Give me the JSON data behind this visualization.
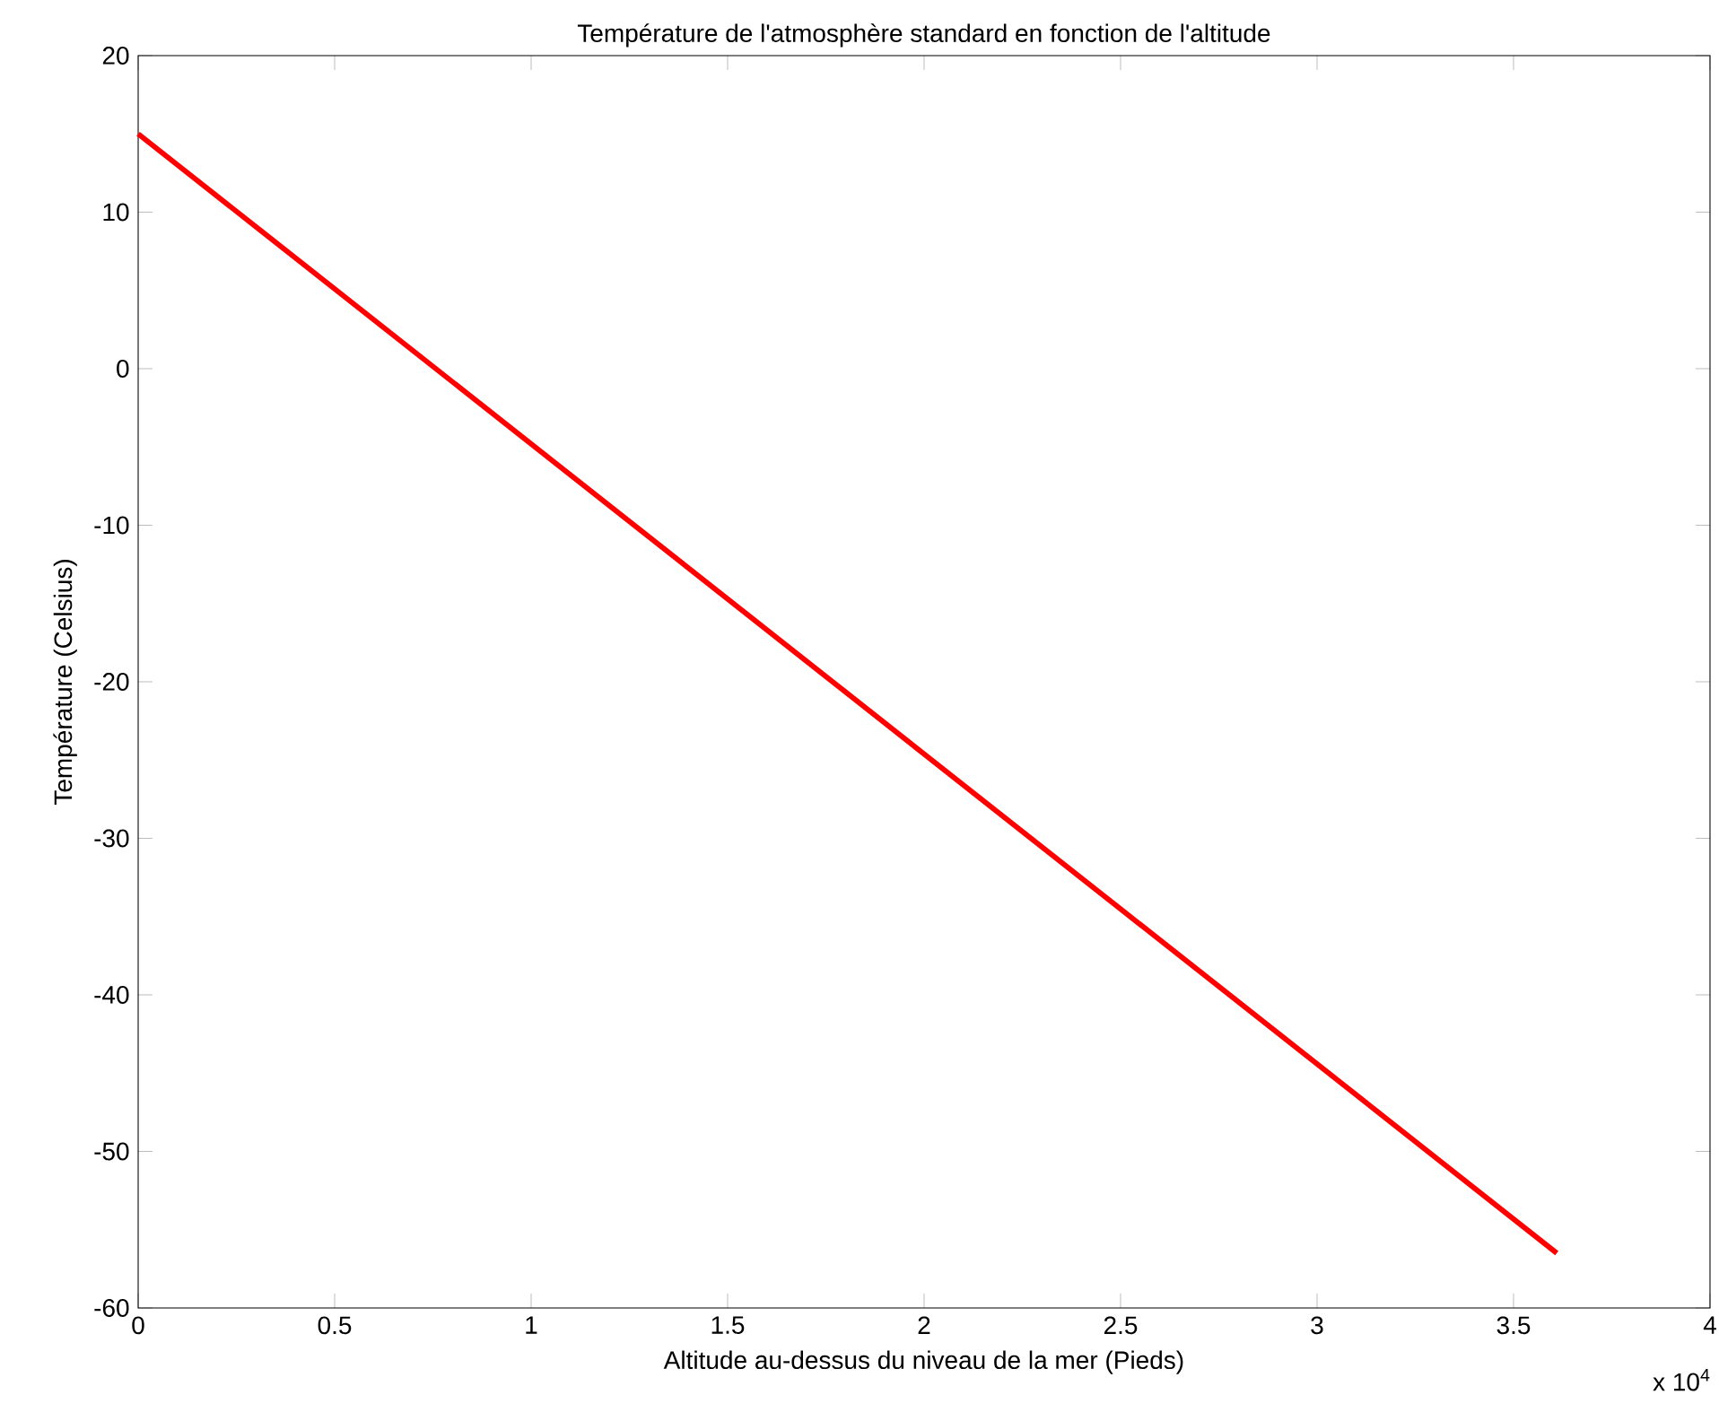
{
  "chart_data": {
    "type": "line",
    "title": "Température de l'atmosphère standard en fonction de l'altitude",
    "xlabel": "Altitude au-dessus du niveau de la mer (Pieds)",
    "ylabel": "Température (Celsius)",
    "series": [
      {
        "color": "#ff0000",
        "x": [
          0,
          3.61
        ],
        "values": [
          15,
          -56.5
        ]
      }
    ],
    "xlim": [
      0,
      4
    ],
    "ylim": [
      -60,
      20
    ],
    "xticks": [
      0,
      0.5,
      1,
      1.5,
      2,
      2.5,
      3,
      3.5,
      4
    ],
    "yticks": [
      -60,
      -50,
      -40,
      -30,
      -20,
      -10,
      0,
      10,
      20
    ],
    "annotations": [
      "x 10$^{4}$"
    ],
    "line_style": "solid"
  }
}
